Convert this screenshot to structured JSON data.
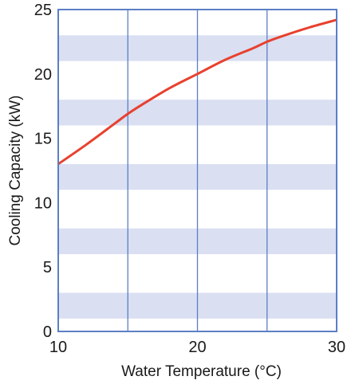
{
  "chart_data": {
    "type": "line",
    "title": "",
    "xlabel": "Water Temperature (°C)",
    "ylabel": "Cooling Capacity (kW)",
    "xlim": [
      10,
      30
    ],
    "ylim": [
      0,
      25
    ],
    "x_ticks": [
      10,
      20,
      30
    ],
    "y_ticks": [
      0,
      5,
      10,
      15,
      20,
      25
    ],
    "x_gridlines": [
      10,
      15,
      20,
      25,
      30
    ],
    "grid": true,
    "band_color": "#dadff2",
    "line_color": "#e8412e",
    "frame_color": "#5b7fc4",
    "series": [
      {
        "x": [
          10,
          12,
          14,
          15,
          16,
          18,
          20,
          22,
          24,
          25,
          26,
          28,
          30
        ],
        "values": [
          13.0,
          14.5,
          16.1,
          16.9,
          17.6,
          18.9,
          20.0,
          21.1,
          22.0,
          22.5,
          22.9,
          23.6,
          24.2
        ]
      }
    ]
  }
}
